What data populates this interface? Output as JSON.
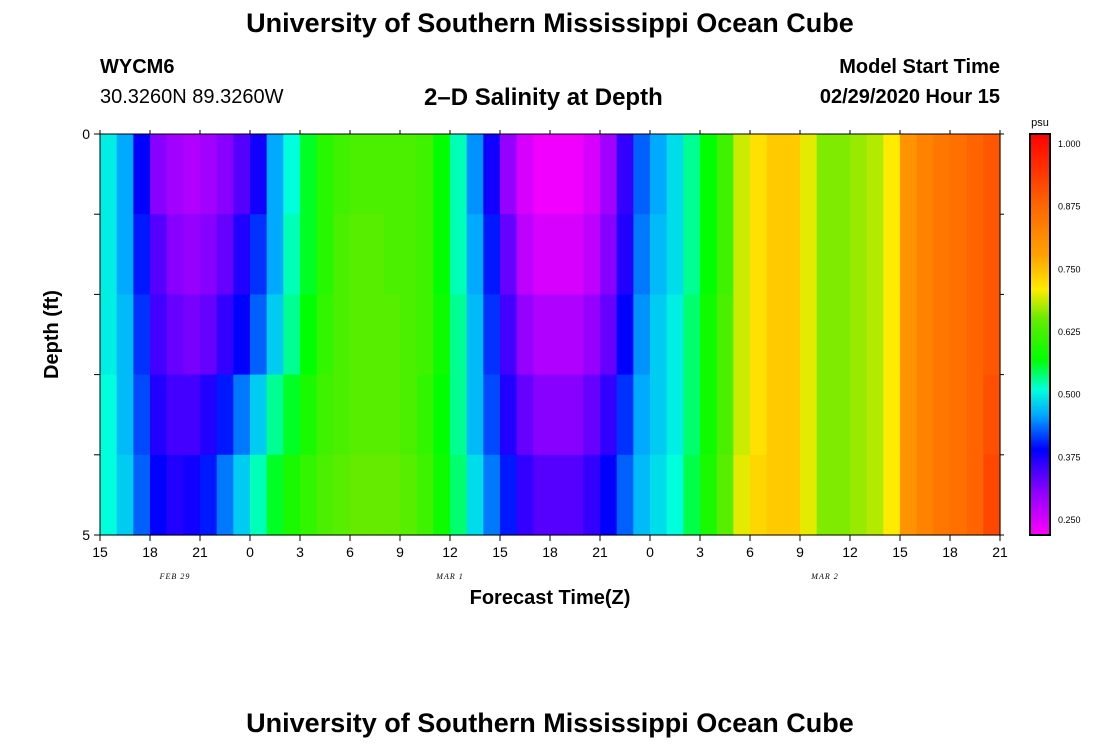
{
  "header": {
    "title": "University of Southern Mississippi Ocean Cube",
    "station": "WYCM6",
    "coords": "30.3260N 89.3260W",
    "subtitle": "2–D Salinity at Depth",
    "start_label": "Model Start Time",
    "start_value": "02/29/2020 Hour 15"
  },
  "footer": {
    "title": "University of Southern Mississippi Ocean Cube"
  },
  "chart_data": {
    "type": "heatmap",
    "title": "2–D Salinity at Depth",
    "xlabel": "Forecast Time(Z)",
    "ylabel": "Depth (ft)",
    "x_ticks": [
      "15",
      "18",
      "21",
      "0",
      "3",
      "6",
      "9",
      "12",
      "15",
      "18",
      "21",
      "0",
      "3",
      "6",
      "9",
      "12",
      "15",
      "18",
      "21"
    ],
    "date_labels": [
      {
        "text": "FEB 29",
        "hour_index": 4.5
      },
      {
        "text": "MAR 1",
        "hour_index": 21
      },
      {
        "text": "MAR 2",
        "hour_index": 43.5
      }
    ],
    "x_range_hours": [
      0,
      54
    ],
    "y_tick_labels": [
      "0",
      "",
      "",
      "",
      "",
      "5"
    ],
    "ylim": [
      0,
      5
    ],
    "colorbar": {
      "unit": "psu",
      "ticks": [
        "0.250",
        "0.375",
        "0.500",
        "0.625",
        "0.750",
        "0.875",
        "1.000"
      ],
      "tick_values": [
        0.25,
        0.375,
        0.5,
        0.625,
        0.75,
        0.875,
        1.0
      ],
      "range": [
        0.22,
        1.02
      ]
    },
    "depth_levels": [
      0.5,
      1.5,
      2.5,
      3.5,
      4.5
    ],
    "hourly_values": [
      [
        0.5,
        0.46,
        0.39,
        0.31,
        0.29,
        0.28,
        0.29,
        0.31,
        0.34,
        0.38,
        0.46,
        0.51,
        0.56,
        0.6,
        0.62,
        0.63,
        0.63,
        0.63,
        0.63,
        0.62,
        0.57,
        0.52,
        0.45,
        0.38,
        0.3,
        0.25,
        0.23,
        0.23,
        0.23,
        0.25,
        0.29,
        0.36,
        0.43,
        0.46,
        0.49,
        0.53,
        0.57,
        0.62,
        0.69,
        0.72,
        0.74,
        0.74,
        0.7,
        0.66,
        0.66,
        0.67,
        0.68,
        0.71,
        0.8,
        0.83,
        0.85,
        0.86,
        0.88,
        0.9
      ],
      [
        0.5,
        0.46,
        0.4,
        0.34,
        0.31,
        0.3,
        0.31,
        0.33,
        0.37,
        0.41,
        0.46,
        0.52,
        0.56,
        0.6,
        0.63,
        0.64,
        0.64,
        0.63,
        0.63,
        0.62,
        0.57,
        0.52,
        0.46,
        0.4,
        0.33,
        0.27,
        0.25,
        0.25,
        0.25,
        0.27,
        0.31,
        0.37,
        0.44,
        0.47,
        0.49,
        0.53,
        0.57,
        0.62,
        0.69,
        0.72,
        0.74,
        0.74,
        0.7,
        0.66,
        0.66,
        0.67,
        0.68,
        0.71,
        0.8,
        0.83,
        0.85,
        0.86,
        0.88,
        0.9
      ],
      [
        0.5,
        0.47,
        0.41,
        0.35,
        0.33,
        0.32,
        0.33,
        0.36,
        0.39,
        0.43,
        0.48,
        0.53,
        0.57,
        0.61,
        0.63,
        0.64,
        0.64,
        0.64,
        0.63,
        0.62,
        0.58,
        0.53,
        0.47,
        0.41,
        0.35,
        0.3,
        0.28,
        0.28,
        0.28,
        0.3,
        0.33,
        0.39,
        0.45,
        0.48,
        0.5,
        0.54,
        0.58,
        0.63,
        0.69,
        0.72,
        0.74,
        0.74,
        0.7,
        0.66,
        0.66,
        0.67,
        0.68,
        0.71,
        0.8,
        0.83,
        0.85,
        0.86,
        0.88,
        0.9
      ],
      [
        0.51,
        0.47,
        0.42,
        0.37,
        0.35,
        0.35,
        0.37,
        0.4,
        0.44,
        0.48,
        0.53,
        0.56,
        0.59,
        0.62,
        0.63,
        0.64,
        0.64,
        0.64,
        0.63,
        0.61,
        0.57,
        0.53,
        0.47,
        0.42,
        0.37,
        0.33,
        0.31,
        0.31,
        0.31,
        0.33,
        0.36,
        0.41,
        0.46,
        0.48,
        0.5,
        0.54,
        0.58,
        0.63,
        0.69,
        0.72,
        0.74,
        0.74,
        0.7,
        0.66,
        0.66,
        0.67,
        0.68,
        0.71,
        0.8,
        0.83,
        0.85,
        0.86,
        0.88,
        0.91
      ],
      [
        0.51,
        0.48,
        0.43,
        0.39,
        0.37,
        0.38,
        0.4,
        0.44,
        0.48,
        0.52,
        0.56,
        0.59,
        0.61,
        0.63,
        0.64,
        0.65,
        0.65,
        0.65,
        0.64,
        0.62,
        0.58,
        0.54,
        0.49,
        0.44,
        0.4,
        0.36,
        0.34,
        0.34,
        0.34,
        0.36,
        0.39,
        0.43,
        0.47,
        0.49,
        0.51,
        0.55,
        0.59,
        0.64,
        0.7,
        0.73,
        0.74,
        0.74,
        0.7,
        0.66,
        0.66,
        0.67,
        0.68,
        0.71,
        0.8,
        0.83,
        0.85,
        0.86,
        0.88,
        0.92
      ]
    ]
  }
}
